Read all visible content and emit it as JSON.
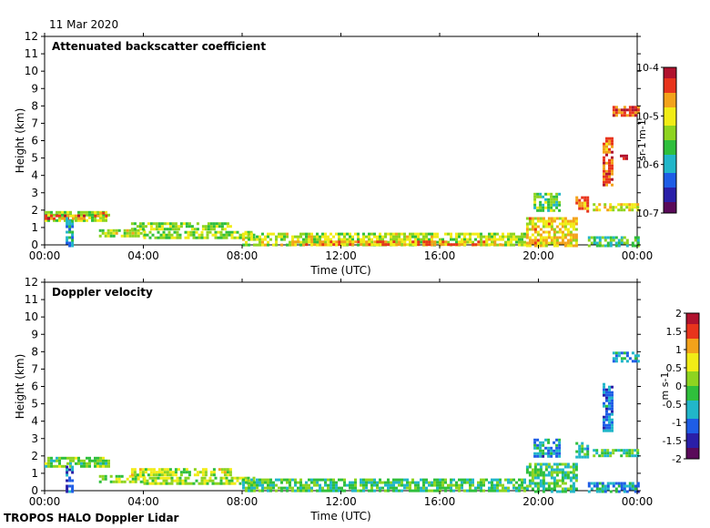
{
  "header": {
    "date": "11 Mar 2020"
  },
  "footer": {
    "label": "TROPOS HALO Doppler Lidar"
  },
  "colors": {
    "palette": [
      "#5a0a5a",
      "#2a1fa8",
      "#1e5de6",
      "#21b6c9",
      "#2fbf3c",
      "#8ed420",
      "#f1ec16",
      "#f3a21a",
      "#e8341c",
      "#b0122e"
    ]
  },
  "chart_data": [
    {
      "type": "heatmap",
      "title": "Attenuated backscatter coefficient",
      "xlabel": "Time (UTC)",
      "ylabel": "Height (km)",
      "xticks": [
        "00:00",
        "04:00",
        "08:00",
        "12:00",
        "16:00",
        "20:00",
        "00:00"
      ],
      "xlim": [
        0,
        24
      ],
      "yticks": [
        "0",
        "1",
        "2",
        "3",
        "4",
        "5",
        "6",
        "7",
        "8",
        "9",
        "10",
        "11",
        "12"
      ],
      "ylim": [
        0,
        12
      ],
      "colorbar": {
        "label": "sr-1 m-1",
        "ticks": [
          "10-4",
          "10-5",
          "10-6",
          "10-7"
        ],
        "scale": "log",
        "range": [
          1e-07,
          0.0001
        ]
      },
      "features": [
        {
          "t0": 0.0,
          "t1": 2.6,
          "h0": 1.4,
          "h1": 1.95,
          "level": 0.55
        },
        {
          "t0": 0.0,
          "t1": 1.6,
          "h0": 1.55,
          "h1": 1.75,
          "level": 0.85
        },
        {
          "t0": 0.85,
          "t1": 1.15,
          "h0": 0.0,
          "h1": 1.6,
          "level": 0.35
        },
        {
          "t0": 2.0,
          "t1": 2.5,
          "h0": 1.6,
          "h1": 1.9,
          "level": 0.8
        },
        {
          "t0": 2.2,
          "t1": 4.0,
          "h0": 0.5,
          "h1": 0.9,
          "level": 0.6
        },
        {
          "t0": 3.5,
          "t1": 7.5,
          "h0": 0.9,
          "h1": 1.3,
          "level": 0.55
        },
        {
          "t0": 4.0,
          "t1": 8.5,
          "h0": 0.4,
          "h1": 0.8,
          "level": 0.55
        },
        {
          "t0": 8.0,
          "t1": 19.5,
          "h0": 0.0,
          "h1": 0.7,
          "level": 0.6
        },
        {
          "t0": 10.0,
          "t1": 18.5,
          "h0": 0.0,
          "h1": 0.25,
          "level": 0.8
        },
        {
          "t0": 19.5,
          "t1": 21.5,
          "h0": 0.0,
          "h1": 1.6,
          "level": 0.7
        },
        {
          "t0": 19.8,
          "t1": 20.8,
          "h0": 2.0,
          "h1": 3.0,
          "level": 0.5
        },
        {
          "t0": 21.5,
          "t1": 22.0,
          "h0": 2.0,
          "h1": 2.8,
          "level": 0.8
        },
        {
          "t0": 22.6,
          "t1": 23.0,
          "h0": 3.5,
          "h1": 6.2,
          "level": 0.85
        },
        {
          "t0": 22.2,
          "t1": 24.0,
          "h0": 2.0,
          "h1": 2.4,
          "level": 0.65
        },
        {
          "t0": 23.3,
          "t1": 23.6,
          "h0": 4.9,
          "h1": 5.2,
          "level": 0.9
        },
        {
          "t0": 23.0,
          "t1": 24.0,
          "h0": 7.5,
          "h1": 8.0,
          "level": 0.9
        },
        {
          "t0": 22.0,
          "t1": 24.0,
          "h0": 0.0,
          "h1": 0.5,
          "level": 0.45
        }
      ]
    },
    {
      "type": "heatmap",
      "title": "Doppler velocity",
      "xlabel": "Time (UTC)",
      "ylabel": "Height (km)",
      "xticks": [
        "00:00",
        "04:00",
        "08:00",
        "12:00",
        "16:00",
        "20:00",
        "00:00"
      ],
      "xlim": [
        0,
        24
      ],
      "yticks": [
        "0",
        "1",
        "2",
        "3",
        "4",
        "5",
        "6",
        "7",
        "8",
        "9",
        "10",
        "11",
        "12"
      ],
      "ylim": [
        0,
        12
      ],
      "colorbar": {
        "label": "m s-1",
        "ticks": [
          "2",
          "1.5",
          "1",
          "0.5",
          "0",
          "-0.5",
          "-1",
          "-1.5",
          "-2"
        ],
        "range": [
          -2,
          2
        ]
      },
      "features": [
        {
          "t0": 0.0,
          "t1": 2.6,
          "h0": 1.4,
          "h1": 1.95,
          "level": 0.5
        },
        {
          "t0": 0.85,
          "t1": 1.15,
          "h0": 0.0,
          "h1": 1.6,
          "level": 0.2
        },
        {
          "t0": 2.2,
          "t1": 4.0,
          "h0": 0.5,
          "h1": 0.9,
          "level": 0.55
        },
        {
          "t0": 3.5,
          "t1": 7.5,
          "h0": 0.9,
          "h1": 1.3,
          "level": 0.6
        },
        {
          "t0": 4.0,
          "t1": 8.5,
          "h0": 0.4,
          "h1": 0.8,
          "level": 0.55
        },
        {
          "t0": 8.0,
          "t1": 19.5,
          "h0": 0.0,
          "h1": 0.7,
          "level": 0.45
        },
        {
          "t0": 19.5,
          "t1": 21.5,
          "h0": 0.0,
          "h1": 1.6,
          "level": 0.45
        },
        {
          "t0": 19.8,
          "t1": 20.8,
          "h0": 2.0,
          "h1": 3.0,
          "level": 0.3
        },
        {
          "t0": 21.5,
          "t1": 22.0,
          "h0": 2.0,
          "h1": 2.8,
          "level": 0.4
        },
        {
          "t0": 22.6,
          "t1": 23.0,
          "h0": 3.5,
          "h1": 6.2,
          "level": 0.25
        },
        {
          "t0": 22.2,
          "t1": 24.0,
          "h0": 2.0,
          "h1": 2.4,
          "level": 0.45
        },
        {
          "t0": 23.0,
          "t1": 24.0,
          "h0": 7.5,
          "h1": 8.0,
          "level": 0.3
        },
        {
          "t0": 22.0,
          "t1": 24.0,
          "h0": 0.0,
          "h1": 0.5,
          "level": 0.3
        }
      ]
    }
  ]
}
